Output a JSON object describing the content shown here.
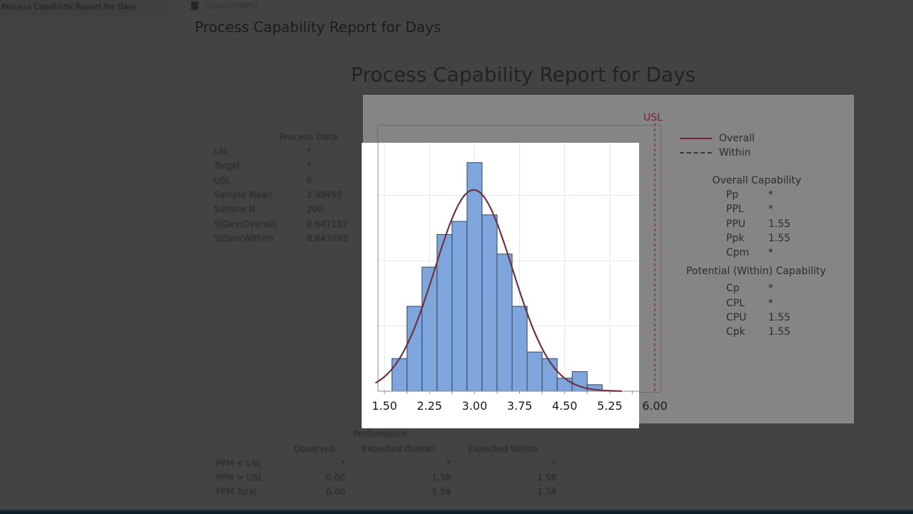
{
  "window": {
    "left_tab_label": "Process Capability Report for Days",
    "file_tab_label": "QUALITY.MPW",
    "header_title": "Process Capability Report for Days"
  },
  "report": {
    "title": "Process Capability Report for Days",
    "usl_marker_label": "USL"
  },
  "process_data": {
    "heading": "Process Data",
    "rows": [
      {
        "label": "LSL",
        "value": "*"
      },
      {
        "label": "Target",
        "value": "*"
      },
      {
        "label": "USL",
        "value": "6"
      },
      {
        "label": "Sample Mean",
        "value": "2.98455"
      },
      {
        "label": "Sample N",
        "value": "200"
      },
      {
        "label": "StDev(Overall)",
        "value": "0.647152"
      },
      {
        "label": "StDev(Within)",
        "value": "0.647093"
      }
    ]
  },
  "legend": {
    "items": [
      {
        "label": "Overall",
        "style": "solid",
        "color": "#7a2036"
      },
      {
        "label": "Within",
        "style": "dashed",
        "color": "#3a3a3a"
      }
    ]
  },
  "overall_capability": {
    "heading": "Overall Capability",
    "rows": [
      {
        "label": "Pp",
        "value": "*"
      },
      {
        "label": "PPL",
        "value": "*"
      },
      {
        "label": "PPU",
        "value": "1.55"
      },
      {
        "label": "Ppk",
        "value": "1.55"
      },
      {
        "label": "Cpm",
        "value": "*"
      }
    ]
  },
  "within_capability": {
    "heading": "Potential (Within) Capability",
    "rows": [
      {
        "label": "Cp",
        "value": "*"
      },
      {
        "label": "CPL",
        "value": "*"
      },
      {
        "label": "CPU",
        "value": "1.55"
      },
      {
        "label": "Cpk",
        "value": "1.55"
      }
    ]
  },
  "performance": {
    "heading": "Performance",
    "columns": [
      "Observed",
      "Expected Overall",
      "Expected Within"
    ],
    "rows": [
      {
        "label": "PPM < LSL",
        "values": [
          "*",
          "*",
          "*"
        ]
      },
      {
        "label": "PPM > USL",
        "values": [
          "0.00",
          "1.58",
          "1.58"
        ]
      },
      {
        "label": "PPM Total",
        "values": [
          "0.00",
          "1.58",
          "1.58"
        ]
      }
    ]
  },
  "colors": {
    "bar_fill": "#7fa6dc",
    "bar_stroke": "#34465e",
    "overall_curve": "#8b1f3c",
    "within_curve": "#4a4a4a",
    "usl_line": "#8b1f3c"
  },
  "chart_data": {
    "type": "bar",
    "title": "Process Capability Report for Days",
    "xlabel": "",
    "ylabel": "",
    "x_ticks": [
      "1.50",
      "2.25",
      "3.00",
      "3.75",
      "4.50",
      "5.25",
      "6.00"
    ],
    "xlim": [
      1.46,
      6.1
    ],
    "bin_width": 0.25,
    "bin_edges": [
      1.625,
      1.875,
      2.125,
      2.375,
      2.625,
      2.875,
      3.125,
      3.375,
      3.625,
      3.875,
      4.125,
      4.375,
      4.625,
      4.875,
      5.125
    ],
    "categories": [
      "1.75",
      "2.00",
      "2.25",
      "2.50",
      "2.75",
      "3.00",
      "3.25",
      "3.50",
      "3.75",
      "4.00",
      "4.25",
      "4.50",
      "4.75",
      "5.00"
    ],
    "values": [
      5,
      13,
      19,
      24,
      26,
      35,
      27,
      21,
      13,
      6,
      5,
      2,
      3,
      1
    ],
    "ylim": [
      0,
      40
    ],
    "grid": true,
    "series_overlays": [
      {
        "name": "Overall",
        "type": "normal-curve",
        "mean": 2.98455,
        "stdev": 0.647152
      },
      {
        "name": "Within",
        "type": "normal-curve",
        "mean": 2.98455,
        "stdev": 0.647093
      }
    ],
    "reference_lines": [
      {
        "label": "USL",
        "x": 6
      }
    ],
    "legend_position": "right"
  }
}
